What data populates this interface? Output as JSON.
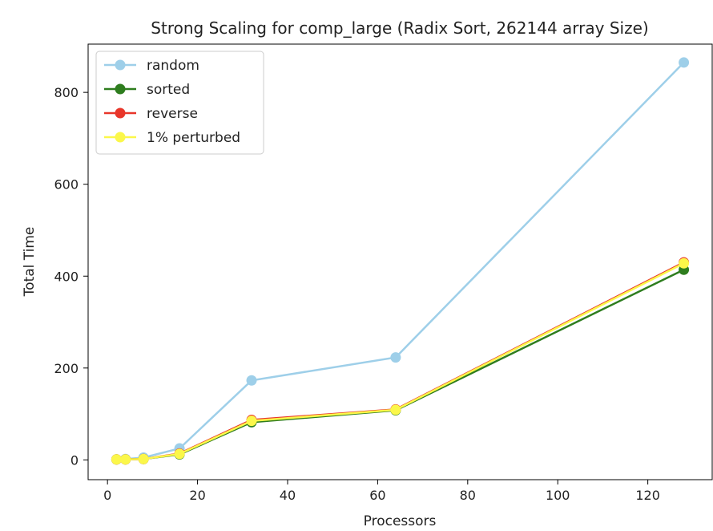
{
  "chart_data": {
    "type": "line",
    "title": "Strong Scaling for comp_large (Radix Sort, 262144 array Size)",
    "xlabel": "Processors",
    "ylabel": "Total Time",
    "xlim": [
      -4.3,
      134.3
    ],
    "ylim": [
      -43,
      905
    ],
    "xticks": [
      0,
      20,
      40,
      60,
      80,
      100,
      120
    ],
    "yticks": [
      0,
      200,
      400,
      600,
      800
    ],
    "grid": false,
    "legend_position": "top-left",
    "marker": "circle",
    "x": [
      2,
      4,
      8,
      16,
      32,
      64,
      128
    ],
    "series": [
      {
        "name": "random",
        "color": "#9ecfe9",
        "values": [
          1,
          2,
          5,
          25,
          173,
          223,
          865
        ]
      },
      {
        "name": "sorted",
        "color": "#2e7d1e",
        "values": [
          1,
          1,
          2,
          12,
          82,
          108,
          414
        ]
      },
      {
        "name": "reverse",
        "color": "#e8362a",
        "values": [
          1,
          1,
          2,
          14,
          87,
          110,
          430
        ]
      },
      {
        "name": "1% perturbed",
        "color": "#fbf74a",
        "values": [
          1,
          1,
          2,
          13,
          85,
          109,
          428
        ]
      }
    ]
  }
}
